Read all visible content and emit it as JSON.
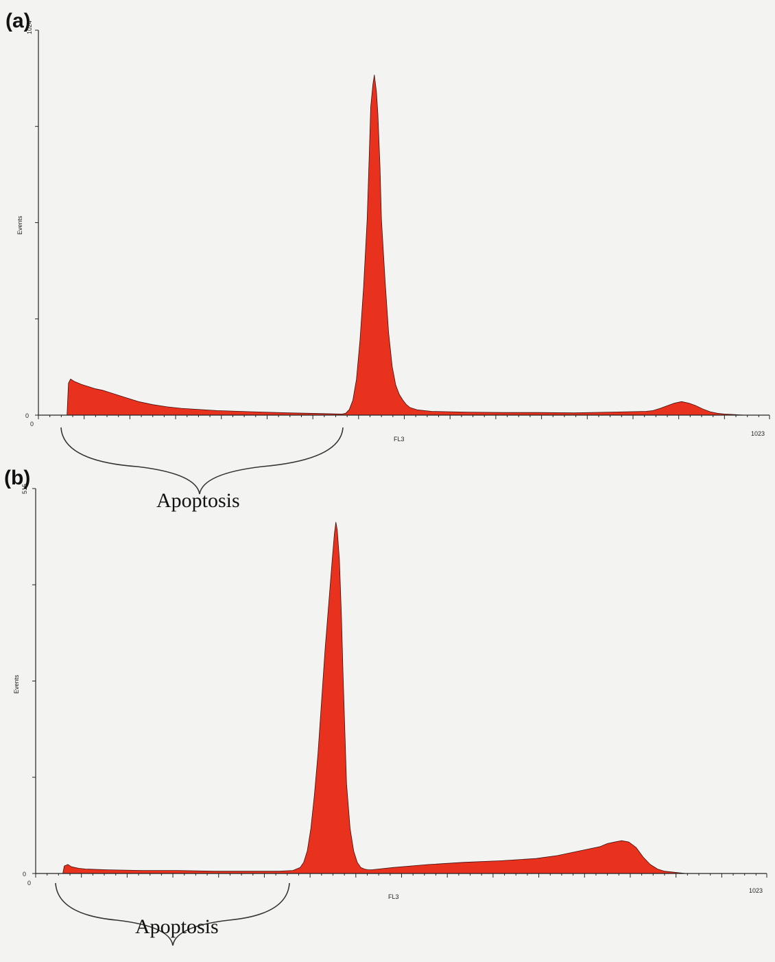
{
  "colors": {
    "histogram_fill": "#e8321e",
    "outline": "#3a1010",
    "background": "#f3f3f1"
  },
  "chart_data": [
    {
      "type": "area",
      "panel_label": "(a)",
      "xlabel": "FL3",
      "ylabel": "Events",
      "xlim": [
        0,
        1023
      ],
      "ylim": [
        0,
        1024
      ],
      "x_tick_labels": [
        "0",
        "1023"
      ],
      "y_tick_labels": [
        "0",
        "1024"
      ],
      "grid": false,
      "annotation": {
        "text": "Apoptosis",
        "x_start": 40,
        "x_end": 430
      },
      "series": [
        {
          "x": [
            40,
            42,
            45,
            50,
            60,
            70,
            80,
            90,
            100,
            120,
            140,
            160,
            180,
            200,
            250,
            300,
            350,
            400,
            425,
            430,
            435,
            440,
            445,
            450,
            455,
            460,
            463,
            465,
            468,
            470,
            473,
            475,
            478,
            480,
            485,
            490,
            495,
            500,
            505,
            510,
            515,
            520,
            530,
            550,
            600,
            650,
            700,
            750,
            800,
            850,
            860,
            870,
            880,
            890,
            900,
            910,
            920,
            930,
            940,
            950,
            960,
            970,
            980,
            990,
            1000
          ],
          "y": [
            0,
            85,
            96,
            90,
            82,
            76,
            70,
            66,
            60,
            48,
            36,
            28,
            22,
            18,
            12,
            9,
            6,
            4,
            3,
            5,
            15,
            40,
            95,
            200,
            340,
            520,
            700,
            820,
            880,
            905,
            860,
            800,
            660,
            520,
            360,
            220,
            130,
            80,
            55,
            40,
            28,
            20,
            14,
            10,
            8,
            7,
            7,
            6,
            8,
            10,
            12,
            18,
            25,
            32,
            36,
            32,
            25,
            16,
            9,
            5,
            3,
            2,
            1,
            0,
            0
          ]
        }
      ]
    },
    {
      "type": "area",
      "panel_label": "(b)",
      "xlabel": "FL3",
      "ylabel": "Events",
      "xlim": [
        0,
        1023
      ],
      "ylim": [
        0,
        515
      ],
      "x_tick_labels": [
        "0",
        "1023"
      ],
      "y_tick_labels": [
        "0",
        "515"
      ],
      "grid": false,
      "annotation": {
        "text": "Apoptosis",
        "x_start": 35,
        "x_end": 360
      },
      "series": [
        {
          "x": [
            38,
            40,
            45,
            50,
            60,
            70,
            100,
            150,
            200,
            250,
            300,
            340,
            360,
            370,
            375,
            380,
            385,
            390,
            395,
            400,
            405,
            410,
            415,
            418,
            420,
            422,
            425,
            428,
            430,
            433,
            435,
            440,
            445,
            450,
            455,
            460,
            465,
            470,
            480,
            500,
            550,
            600,
            650,
            700,
            730,
            750,
            770,
            790,
            800,
            810,
            820,
            830,
            840,
            850,
            860,
            870,
            880,
            890,
            900,
            910,
            920
          ],
          "y": [
            0,
            10,
            12,
            9,
            7,
            6,
            5,
            4,
            4,
            3,
            3,
            3,
            4,
            8,
            15,
            30,
            60,
            105,
            160,
            230,
            300,
            360,
            420,
            455,
            470,
            460,
            420,
            340,
            270,
            180,
            120,
            60,
            30,
            15,
            8,
            6,
            5,
            5,
            6,
            8,
            12,
            15,
            17,
            20,
            24,
            28,
            32,
            36,
            40,
            42,
            44,
            42,
            35,
            22,
            12,
            6,
            3,
            2,
            1,
            0,
            0
          ]
        }
      ]
    }
  ]
}
